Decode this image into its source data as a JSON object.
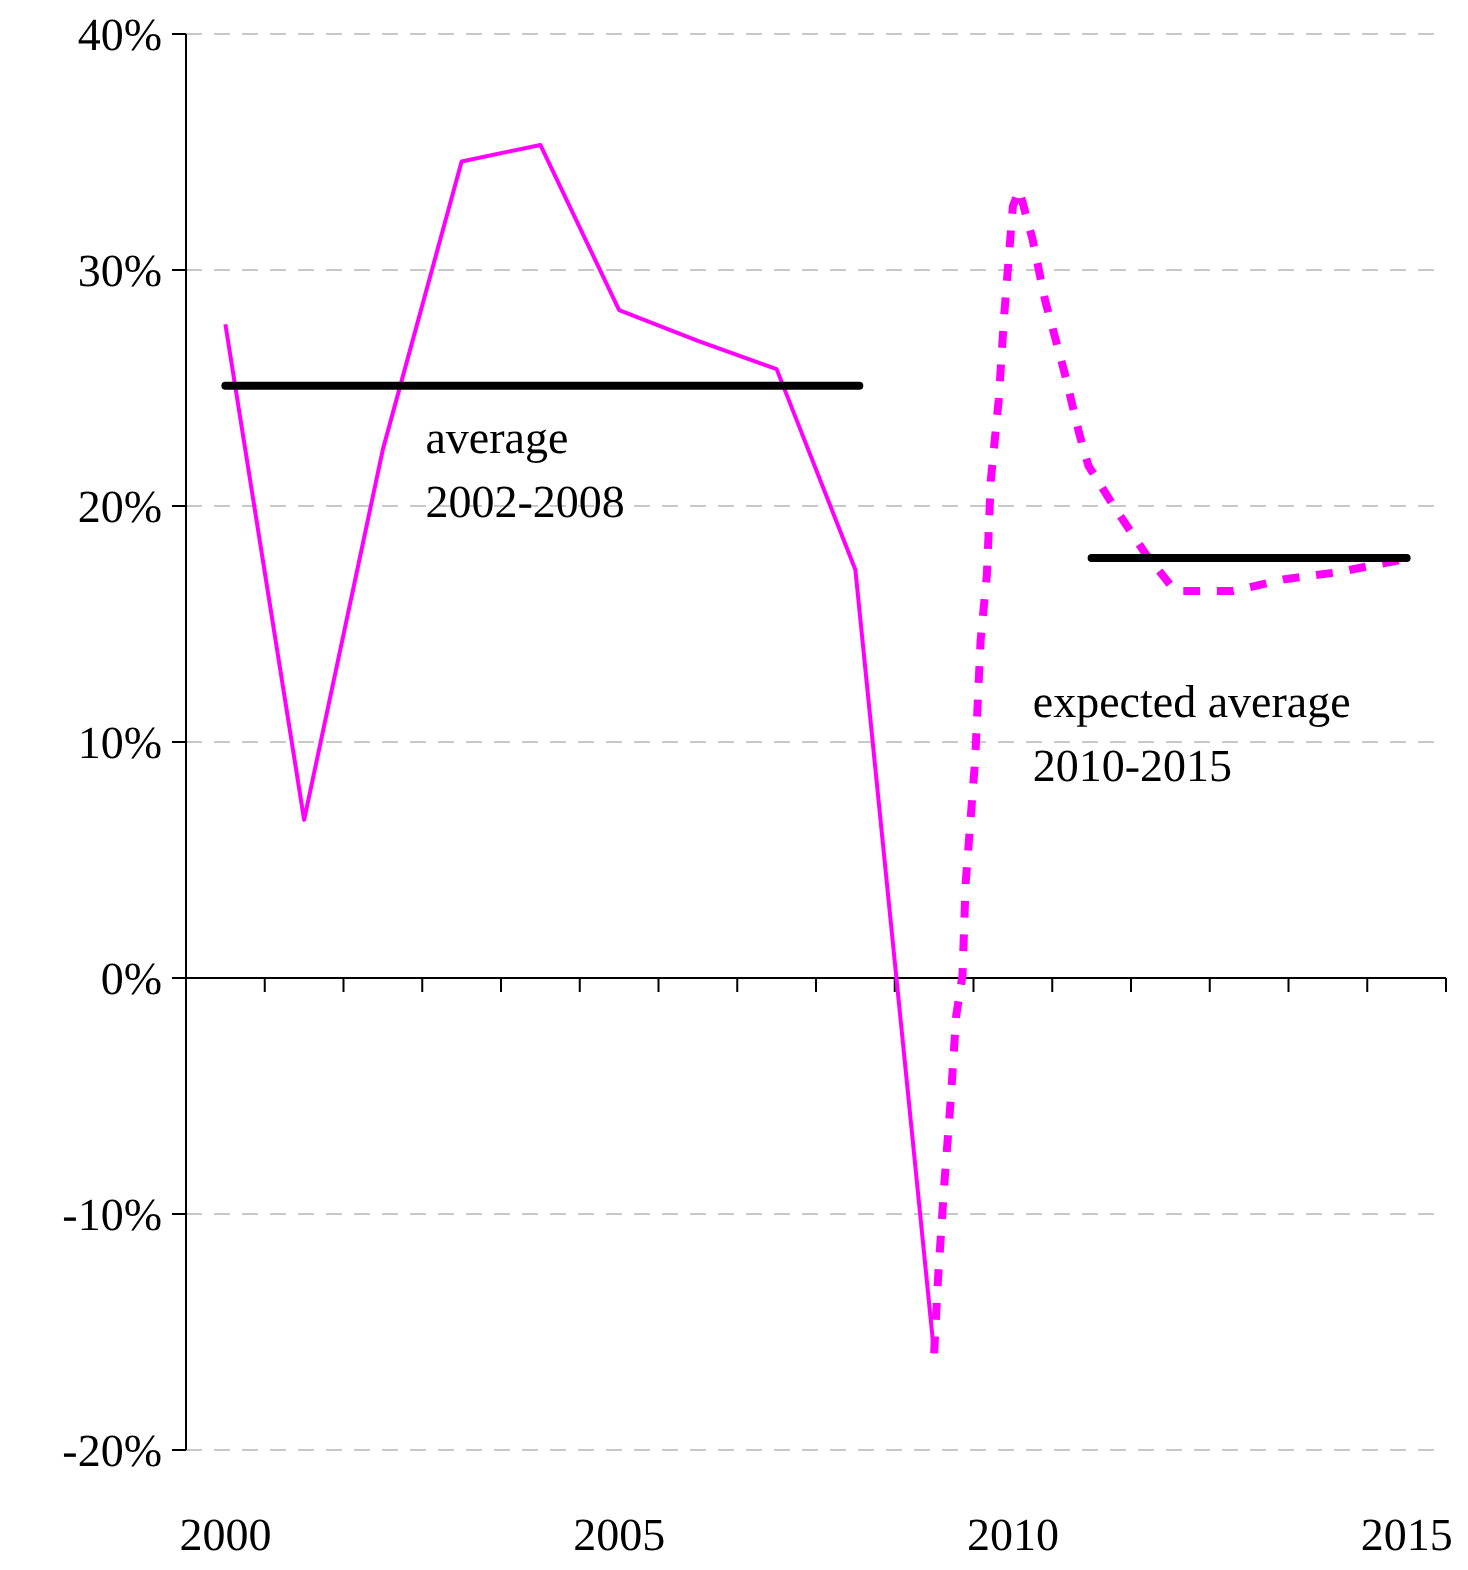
{
  "chart_data": {
    "type": "line",
    "xlim": [
      1999.5,
      2015.5
    ],
    "ylim": [
      -20,
      40
    ],
    "xticks": [
      {
        "value": 1999.5,
        "label": null
      },
      {
        "value": 2000,
        "label": "2000"
      },
      {
        "value": 2000.5,
        "label": null
      },
      {
        "value": 2001.5,
        "label": null
      },
      {
        "value": 2002.5,
        "label": null
      },
      {
        "value": 2003.5,
        "label": null
      },
      {
        "value": 2004.5,
        "label": null
      },
      {
        "value": 2005,
        "label": "2005"
      },
      {
        "value": 2005.5,
        "label": null
      },
      {
        "value": 2006.5,
        "label": null
      },
      {
        "value": 2007.5,
        "label": null
      },
      {
        "value": 2008.5,
        "label": null
      },
      {
        "value": 2009.5,
        "label": null
      },
      {
        "value": 2010,
        "label": "2010"
      },
      {
        "value": 2010.5,
        "label": null
      },
      {
        "value": 2011.5,
        "label": null
      },
      {
        "value": 2012.5,
        "label": null
      },
      {
        "value": 2013.5,
        "label": null
      },
      {
        "value": 2014.5,
        "label": null
      },
      {
        "value": 2015,
        "label": "2015"
      },
      {
        "value": 2015.5,
        "label": null
      }
    ],
    "yticks": [
      {
        "value": -20,
        "label": "-20%"
      },
      {
        "value": -10,
        "label": "-10%"
      },
      {
        "value": 0,
        "label": "0%"
      },
      {
        "value": 10,
        "label": "10%"
      },
      {
        "value": 20,
        "label": "20%"
      },
      {
        "value": 30,
        "label": "30%"
      },
      {
        "value": 40,
        "label": "40%"
      }
    ],
    "grid": "y",
    "marker": "none",
    "series": [
      {
        "color": "#ff00ff",
        "line_style": "solid",
        "x": [
          2000,
          2001,
          2002,
          2003,
          2004,
          2005,
          2006,
          2007,
          2008,
          2009
        ],
        "values": [
          27.7,
          6.7,
          22.4,
          34.6,
          35.3,
          28.3,
          27.0,
          25.8,
          17.3,
          -15.9
        ]
      },
      {
        "color": "#ff00ff",
        "line_style": "dashed",
        "x": [
          2009,
          2009.05,
          2009.13,
          2009.21,
          2009.28,
          2009.36,
          2009.4,
          2009.52,
          2009.59,
          2009.67,
          2009.72,
          2009.82,
          2009.89,
          2010,
          2010.08,
          2010.25,
          2010.41,
          2010.66,
          2010.84,
          2010.96,
          2011.26,
          2011.68,
          2012.06,
          2012.8,
          2013.45,
          2014.14,
          2014.9
        ],
        "values": [
          -15.9,
          -12.7,
          -8.7,
          -5.2,
          -1.6,
          0.1,
          4.0,
          9.2,
          14.3,
          17.1,
          21.1,
          24.5,
          28.1,
          32.7,
          33.4,
          31.3,
          28.7,
          25.6,
          23.1,
          21.7,
          20.1,
          18.0,
          16.4,
          16.4,
          16.9,
          17.2,
          17.7
        ]
      },
      {
        "color": "#000000",
        "line_style": "solid",
        "x": [
          2000,
          2008.05
        ],
        "values": [
          25.1,
          25.1
        ]
      },
      {
        "color": "#000000",
        "line_style": "solid",
        "x": [
          2011,
          2015
        ],
        "values": [
          17.8,
          17.8
        ]
      }
    ],
    "annotations": [
      "average\n2002-2008",
      "expected average\n2010-2015"
    ]
  }
}
